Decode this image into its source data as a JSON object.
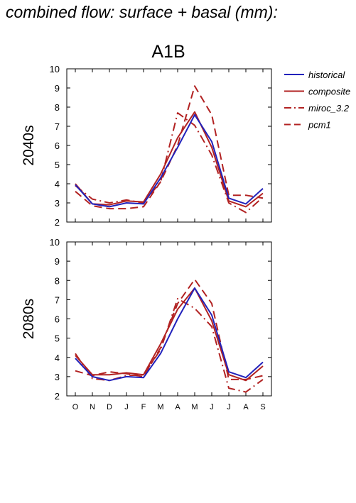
{
  "page_title": "combined flow: surface + basal (mm):",
  "scenario": "A1B",
  "colors": {
    "historical": "#2222bb",
    "model": "#b22222",
    "axis": "#000000"
  },
  "legend": {
    "items": [
      {
        "key": "historical",
        "label": "historical",
        "style": "solid",
        "color": "#2222bb"
      },
      {
        "key": "composite",
        "label": "composite",
        "style": "solid",
        "color": "#b22222"
      },
      {
        "key": "miroc",
        "label": "miroc_3.2",
        "style": "dashdot",
        "color": "#b22222"
      },
      {
        "key": "pcm1",
        "label": "pcm1",
        "style": "dashed",
        "color": "#b22222"
      }
    ]
  },
  "chart_data": [
    {
      "type": "line",
      "panel_label": "2040s",
      "categories": [
        "O",
        "N",
        "D",
        "J",
        "F",
        "M",
        "A",
        "M",
        "J",
        "J",
        "A",
        "S"
      ],
      "ylim": [
        2,
        10
      ],
      "yticks": [
        "2",
        "3",
        "4",
        "5",
        "6",
        "7",
        "8",
        "9",
        "10"
      ],
      "series": [
        {
          "name": "historical",
          "values": [
            3.95,
            2.95,
            2.8,
            3.0,
            2.95,
            4.3,
            5.9,
            7.6,
            6.2,
            3.25,
            2.95,
            3.75
          ]
        },
        {
          "name": "composite",
          "values": [
            4.0,
            2.95,
            2.9,
            3.1,
            3.05,
            4.5,
            6.4,
            7.75,
            5.9,
            3.1,
            2.8,
            3.5
          ]
        },
        {
          "name": "miroc_3.2",
          "values": [
            3.9,
            3.2,
            3.0,
            3.15,
            3.0,
            4.1,
            7.7,
            7.05,
            5.5,
            3.0,
            2.5,
            3.3
          ]
        },
        {
          "name": "pcm1",
          "values": [
            3.6,
            2.85,
            2.7,
            2.7,
            2.8,
            4.1,
            6.0,
            9.1,
            7.6,
            3.4,
            3.4,
            3.25
          ]
        }
      ]
    },
    {
      "type": "line",
      "panel_label": "2080s",
      "categories": [
        "O",
        "N",
        "D",
        "J",
        "F",
        "M",
        "A",
        "M",
        "J",
        "J",
        "A",
        "S"
      ],
      "ylim": [
        2,
        10
      ],
      "yticks": [
        "2",
        "3",
        "4",
        "5",
        "6",
        "7",
        "8",
        "9",
        "10"
      ],
      "series": [
        {
          "name": "historical",
          "values": [
            3.95,
            3.0,
            2.8,
            3.0,
            2.95,
            4.2,
            6.0,
            7.6,
            6.2,
            3.25,
            2.95,
            3.75
          ]
        },
        {
          "name": "composite",
          "values": [
            4.1,
            3.1,
            3.1,
            3.2,
            3.1,
            4.7,
            6.5,
            7.6,
            5.9,
            3.1,
            2.8,
            3.55
          ]
        },
        {
          "name": "miroc_3.2",
          "values": [
            4.2,
            2.9,
            2.8,
            3.05,
            3.1,
            4.4,
            7.05,
            6.55,
            5.6,
            2.4,
            2.2,
            2.85
          ]
        },
        {
          "name": "pcm1",
          "values": [
            3.3,
            3.05,
            3.25,
            3.15,
            3.0,
            4.5,
            6.8,
            8.05,
            6.8,
            2.85,
            2.85,
            3.05
          ]
        }
      ]
    }
  ]
}
